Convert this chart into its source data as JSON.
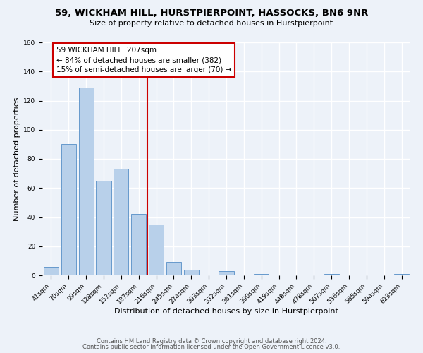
{
  "title": "59, WICKHAM HILL, HURSTPIERPOINT, HASSOCKS, BN6 9NR",
  "subtitle": "Size of property relative to detached houses in Hurstpierpoint",
  "xlabel": "Distribution of detached houses by size in Hurstpierpoint",
  "ylabel": "Number of detached properties",
  "bar_labels": [
    "41sqm",
    "70sqm",
    "99sqm",
    "128sqm",
    "157sqm",
    "187sqm",
    "216sqm",
    "245sqm",
    "274sqm",
    "303sqm",
    "332sqm",
    "361sqm",
    "390sqm",
    "419sqm",
    "448sqm",
    "478sqm",
    "507sqm",
    "536sqm",
    "565sqm",
    "594sqm",
    "623sqm"
  ],
  "bar_values": [
    6,
    90,
    129,
    65,
    73,
    42,
    35,
    9,
    4,
    0,
    3,
    0,
    1,
    0,
    0,
    0,
    1,
    0,
    0,
    0,
    1
  ],
  "bar_color": "#b8d0ea",
  "bar_edge_color": "#6699cc",
  "vline_color": "#cc0000",
  "annotation_text": "59 WICKHAM HILL: 207sqm\n← 84% of detached houses are smaller (382)\n15% of semi-detached houses are larger (70) →",
  "annotation_box_color": "white",
  "annotation_box_edge": "#cc0000",
  "ylim": [
    0,
    160
  ],
  "yticks": [
    0,
    20,
    40,
    60,
    80,
    100,
    120,
    140,
    160
  ],
  "footer1": "Contains HM Land Registry data © Crown copyright and database right 2024.",
  "footer2": "Contains public sector information licensed under the Open Government Licence v3.0.",
  "bg_color": "#edf2f9",
  "grid_color": "white",
  "title_fontsize": 9.5,
  "subtitle_fontsize": 8,
  "xlabel_fontsize": 8,
  "ylabel_fontsize": 8,
  "tick_fontsize": 6.5,
  "annotation_fontsize": 7.5,
  "footer_fontsize": 6
}
